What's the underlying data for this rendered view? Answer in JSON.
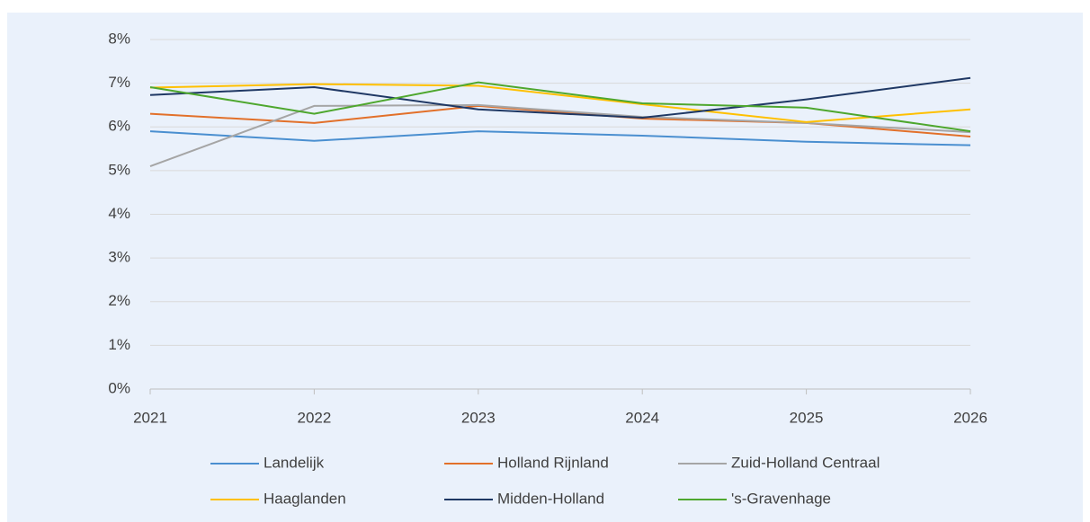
{
  "chart_data": {
    "type": "line",
    "x": [
      2021,
      2022,
      2023,
      2024,
      2025,
      2026
    ],
    "xlim": [
      2021,
      2026
    ],
    "xticks": [
      2021,
      2022,
      2023,
      2024,
      2025,
      2026
    ],
    "ylim": [
      0,
      8
    ],
    "yticks": [
      {
        "value": 0,
        "label": "0%"
      },
      {
        "value": 1,
        "label": "1%"
      },
      {
        "value": 2,
        "label": "2%"
      },
      {
        "value": 3,
        "label": "3%"
      },
      {
        "value": 4,
        "label": "4%"
      },
      {
        "value": 5,
        "label": "5%"
      },
      {
        "value": 6,
        "label": "6%"
      },
      {
        "value": 7,
        "label": "7%"
      },
      {
        "value": 8,
        "label": "8%"
      }
    ],
    "grid": true,
    "legend": "bottom",
    "series": [
      {
        "name": "Landelijk",
        "color": "#4a8fd0",
        "values": [
          5.9,
          5.68,
          5.9,
          5.8,
          5.66,
          5.58
        ]
      },
      {
        "name": "Holland Rijnland",
        "color": "#e2702a",
        "values": [
          6.3,
          6.09,
          6.48,
          6.19,
          6.09,
          5.78
        ]
      },
      {
        "name": "Zuid-Holland Centraal",
        "color": "#a5a5a5",
        "values": [
          5.1,
          6.48,
          6.5,
          6.23,
          6.09,
          5.88
        ]
      },
      {
        "name": "Haaglanden",
        "color": "#ffc000",
        "values": [
          6.9,
          6.98,
          6.94,
          6.52,
          6.11,
          6.4
        ]
      },
      {
        "name": "Midden-Holland",
        "color": "#1f3864",
        "values": [
          6.73,
          6.91,
          6.4,
          6.21,
          6.63,
          7.12
        ]
      },
      {
        "name": "'s-Gravenhage",
        "color": "#4ea72e",
        "values": [
          6.91,
          6.3,
          7.02,
          6.54,
          6.44,
          5.9
        ]
      }
    ]
  }
}
